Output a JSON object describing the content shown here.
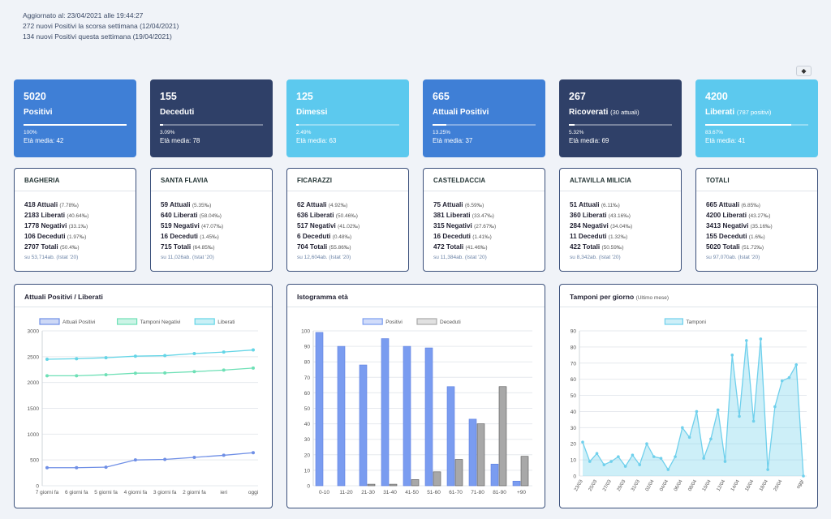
{
  "header": {
    "updated": "Aggiornato al: 23/04/2021 alle 19:44:27",
    "last_week": "272 nuovi Positivi la scorsa settimana (12/04/2021)",
    "this_week": "134 nuovi Positivi questa settimana (19/04/2021)",
    "toggle_icon": "diamond-icon",
    "toggle_glyph": "◆"
  },
  "stats": [
    {
      "value": "5020",
      "label": "Positivi",
      "sub": "",
      "pct": "100%",
      "progress": 1.0,
      "age": "Età media: 42",
      "color": "#3f7fd6"
    },
    {
      "value": "155",
      "label": "Deceduti",
      "sub": "",
      "pct": "3.09%",
      "progress": 0.0309,
      "age": "Età media: 78",
      "color": "#2f4068"
    },
    {
      "value": "125",
      "label": "Dimessi",
      "sub": "",
      "pct": "2.49%",
      "progress": 0.0249,
      "age": "Età media: 63",
      "color": "#5cc9ee"
    },
    {
      "value": "665",
      "label": "Attuali Positivi",
      "sub": "",
      "pct": "13.25%",
      "progress": 0.1325,
      "age": "Età media: 37",
      "color": "#3f7fd6"
    },
    {
      "value": "267",
      "label": "Ricoverati",
      "sub": "(30 attuali)",
      "pct": "5.32%",
      "progress": 0.0532,
      "age": "Età media: 69",
      "color": "#2f4068"
    },
    {
      "value": "4200",
      "label": "Liberati",
      "sub": "(787 positivi)",
      "pct": "83.67%",
      "progress": 0.8367,
      "age": "Età media: 41",
      "color": "#5cc9ee"
    }
  ],
  "towns": [
    {
      "name": "BAGHERIA",
      "rows": [
        {
          "v": "418 Attuali",
          "p": "(7.78‰)"
        },
        {
          "v": "2183 Liberati",
          "p": "(40.64‰)"
        },
        {
          "v": "1778 Negativi",
          "p": "(33.1‰)"
        },
        {
          "v": "106 Deceduti",
          "p": "(1.97‰)"
        },
        {
          "v": "2707 Totali",
          "p": "(50.4‰)"
        }
      ],
      "pop": "su 53,714ab. (Istat '20)"
    },
    {
      "name": "SANTA FLAVIA",
      "rows": [
        {
          "v": "59 Attuali",
          "p": "(5.35‰)"
        },
        {
          "v": "640 Liberati",
          "p": "(58.04‰)"
        },
        {
          "v": "519 Negativi",
          "p": "(47.07‰)"
        },
        {
          "v": "16 Deceduti",
          "p": "(1.45‰)"
        },
        {
          "v": "715 Totali",
          "p": "(64.85‰)"
        }
      ],
      "pop": "su 11,026ab. (Istat '20)"
    },
    {
      "name": "FICARAZZI",
      "rows": [
        {
          "v": "62 Attuali",
          "p": "(4.92‰)"
        },
        {
          "v": "636 Liberati",
          "p": "(50.46‰)"
        },
        {
          "v": "517 Negativi",
          "p": "(41.02‰)"
        },
        {
          "v": "6 Deceduti",
          "p": "(0.48‰)"
        },
        {
          "v": "704 Totali",
          "p": "(55.86‰)"
        }
      ],
      "pop": "su 12,604ab. (Istat '20)"
    },
    {
      "name": "CASTELDACCIA",
      "rows": [
        {
          "v": "75 Attuali",
          "p": "(6.59‰)"
        },
        {
          "v": "381 Liberati",
          "p": "(33.47‰)"
        },
        {
          "v": "315 Negativi",
          "p": "(27.67‰)"
        },
        {
          "v": "16 Deceduti",
          "p": "(1.41‰)"
        },
        {
          "v": "472 Totali",
          "p": "(41.46‰)"
        }
      ],
      "pop": "su 11,384ab. (Istat '20)"
    },
    {
      "name": "ALTAVILLA MILICIA",
      "rows": [
        {
          "v": "51 Attuali",
          "p": "(6.11‰)"
        },
        {
          "v": "360 Liberati",
          "p": "(43.16‰)"
        },
        {
          "v": "284 Negativi",
          "p": "(34.04‰)"
        },
        {
          "v": "11 Deceduti",
          "p": "(1.32‰)"
        },
        {
          "v": "422 Totali",
          "p": "(50.59‰)"
        }
      ],
      "pop": "su 8,342ab. (Istat '20)"
    },
    {
      "name": "TOTALI",
      "rows": [
        {
          "v": "665 Attuali",
          "p": "(6.85‰)"
        },
        {
          "v": "4200 Liberati",
          "p": "(43.27‰)"
        },
        {
          "v": "3413 Negativi",
          "p": "(35.16‰)"
        },
        {
          "v": "155 Deceduti",
          "p": "(1.6‰)"
        },
        {
          "v": "5020 Totali",
          "p": "(51.72‰)"
        }
      ],
      "pop": "su 97,070ab. (Istat '20)"
    }
  ],
  "charts": {
    "line_title": "Attuali Positivi / Liberati",
    "hist_title": "Istogramma età",
    "tamponi_title": "Tamponi per giorno",
    "tamponi_sub": "(Ultimo mese)"
  },
  "chart_data": [
    {
      "type": "line",
      "x": [
        "7 giorni fa",
        "6 giorni fa",
        "5 giorni fa",
        "4 giorni fa",
        "3 giorni fa",
        "2 giorni fa",
        "ieri",
        "oggi"
      ],
      "series": [
        {
          "name": "Attuali Positivi",
          "color": "#6f8fe6",
          "values": [
            350,
            350,
            360,
            500,
            510,
            550,
            590,
            640
          ]
        },
        {
          "name": "Tamponi Negativi",
          "color": "#6ee0b6",
          "values": [
            2130,
            2130,
            2150,
            2180,
            2185,
            2210,
            2240,
            2280
          ]
        },
        {
          "name": "Liberati",
          "color": "#64d5e6",
          "values": [
            2450,
            2460,
            2480,
            2510,
            2520,
            2560,
            2590,
            2630
          ]
        }
      ],
      "ylim": [
        0,
        3000
      ],
      "yticks": [
        0,
        500,
        1000,
        1500,
        2000,
        2500,
        3000
      ],
      "legend": "top"
    },
    {
      "type": "bar",
      "categories": [
        "0-10",
        "11-20",
        "21-30",
        "31-40",
        "41-50",
        "51-60",
        "61-70",
        "71-80",
        "81-90",
        "+90"
      ],
      "series": [
        {
          "name": "Positivi",
          "color": "#7a9cf0",
          "values": [
            99,
            90,
            78,
            95,
            90,
            89,
            64,
            43,
            14,
            3
          ]
        },
        {
          "name": "Deceduti",
          "color": "#a8a8a8",
          "values": [
            0,
            0,
            1,
            1,
            4,
            9,
            17,
            40,
            64,
            19
          ]
        }
      ],
      "ylim": [
        0,
        100
      ],
      "yticks": [
        0,
        10,
        20,
        30,
        40,
        50,
        60,
        70,
        80,
        90,
        100
      ],
      "legend": "top"
    },
    {
      "type": "area",
      "x": [
        "23/03",
        "24/03",
        "25/03",
        "26/03",
        "27/03",
        "28/03",
        "29/03",
        "30/03",
        "31/03",
        "01/04",
        "02/04",
        "03/04",
        "04/04",
        "05/04",
        "06/04",
        "07/04",
        "08/04",
        "09/04",
        "10/04",
        "11/04",
        "12/04",
        "13/04",
        "14/04",
        "15/04",
        "16/04",
        "17/04",
        "18/04",
        "19/04",
        "20/04",
        "21/04",
        "22/04",
        "oggi"
      ],
      "xticks": [
        "23/03",
        "25/03",
        "27/03",
        "29/03",
        "31/03",
        "02/04",
        "04/04",
        "06/04",
        "08/04",
        "10/04",
        "12/04",
        "14/04",
        "16/04",
        "18/04",
        "20/04",
        "oggi"
      ],
      "series": [
        {
          "name": "Tamponi",
          "color": "#6fd0ec",
          "values": [
            21,
            9,
            14,
            7,
            9,
            12,
            6,
            13,
            7,
            20,
            12,
            11,
            4,
            12,
            30,
            24,
            40,
            11,
            23,
            41,
            9,
            75,
            37,
            84,
            34,
            85,
            4,
            43,
            59,
            61,
            69,
            0
          ]
        }
      ],
      "ylim": [
        0,
        90
      ],
      "yticks": [
        0,
        10,
        20,
        30,
        40,
        50,
        60,
        70,
        80,
        90
      ],
      "legend": "top"
    }
  ]
}
